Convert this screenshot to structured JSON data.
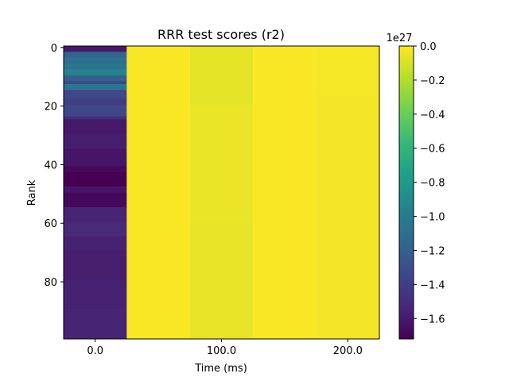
{
  "chart_data": {
    "type": "heatmap",
    "title": "RRR test scores (r2)",
    "xlabel": "Time (ms)",
    "ylabel": "Rank",
    "x_ticks": [
      {
        "value": 0,
        "label": "0.0"
      },
      {
        "value": 100,
        "label": "100.0"
      },
      {
        "value": 200,
        "label": "200.0"
      }
    ],
    "y_ticks": [
      {
        "value": 0,
        "label": "0"
      },
      {
        "value": 20,
        "label": "20"
      },
      {
        "value": 40,
        "label": "40"
      },
      {
        "value": 60,
        "label": "60"
      },
      {
        "value": 80,
        "label": "80"
      }
    ],
    "x_centers": [
      0,
      50,
      100,
      150,
      200
    ],
    "n_rows": 100,
    "colorbar": {
      "label": "",
      "offset_text": "1e27",
      "range": [
        -1.72,
        0.0
      ],
      "ticks": [
        {
          "value": 0.0,
          "label": "0.0"
        },
        {
          "value": -0.2,
          "label": "−0.2"
        },
        {
          "value": -0.4,
          "label": "−0.4"
        },
        {
          "value": -0.6,
          "label": "−0.6"
        },
        {
          "value": -0.8,
          "label": "−0.8"
        },
        {
          "value": -1.0,
          "label": "−1.0"
        },
        {
          "value": -1.2,
          "label": "−1.2"
        },
        {
          "value": -1.4,
          "label": "−1.4"
        },
        {
          "value": -1.6,
          "label": "−1.6"
        }
      ]
    },
    "columns": [
      {
        "x": 0,
        "segments": [
          {
            "from": 0,
            "to": 2,
            "value": -1.6
          },
          {
            "from": 2,
            "to": 4,
            "value": -1.15
          },
          {
            "from": 4,
            "to": 6,
            "value": -1.1
          },
          {
            "from": 6,
            "to": 8,
            "value": -1.05
          },
          {
            "from": 8,
            "to": 10,
            "value": -0.95
          },
          {
            "from": 10,
            "to": 12,
            "value": -1.2
          },
          {
            "from": 12,
            "to": 13,
            "value": -1.35
          },
          {
            "from": 13,
            "to": 15,
            "value": -1.05
          },
          {
            "from": 15,
            "to": 18,
            "value": -1.35
          },
          {
            "from": 18,
            "to": 20,
            "value": -1.4
          },
          {
            "from": 20,
            "to": 24,
            "value": -1.35
          },
          {
            "from": 24,
            "to": 25,
            "value": -1.5
          },
          {
            "from": 25,
            "to": 30,
            "value": -1.6
          },
          {
            "from": 30,
            "to": 35,
            "value": -1.58
          },
          {
            "from": 35,
            "to": 41,
            "value": -1.62
          },
          {
            "from": 41,
            "to": 43,
            "value": -1.68
          },
          {
            "from": 43,
            "to": 48,
            "value": -1.72
          },
          {
            "from": 48,
            "to": 50,
            "value": -1.62
          },
          {
            "from": 50,
            "to": 55,
            "value": -1.68
          },
          {
            "from": 55,
            "to": 60,
            "value": -1.55
          },
          {
            "from": 60,
            "to": 65,
            "value": -1.52
          },
          {
            "from": 65,
            "to": 70,
            "value": -1.56
          },
          {
            "from": 70,
            "to": 80,
            "value": -1.58
          },
          {
            "from": 80,
            "to": 90,
            "value": -1.56
          },
          {
            "from": 90,
            "to": 100,
            "value": -1.55
          }
        ]
      },
      {
        "x": 50,
        "segments": [
          {
            "from": 0,
            "to": 100,
            "value": -0.01
          }
        ]
      },
      {
        "x": 100,
        "segments": [
          {
            "from": 0,
            "to": 20,
            "value": -0.06
          },
          {
            "from": 20,
            "to": 60,
            "value": -0.05
          },
          {
            "from": 60,
            "to": 100,
            "value": -0.055
          }
        ]
      },
      {
        "x": 150,
        "segments": [
          {
            "from": 0,
            "to": 100,
            "value": -0.01
          }
        ]
      },
      {
        "x": 200,
        "segments": [
          {
            "from": 0,
            "to": 17,
            "value": -0.02
          },
          {
            "from": 17,
            "to": 100,
            "value": -0.025
          }
        ]
      }
    ]
  }
}
